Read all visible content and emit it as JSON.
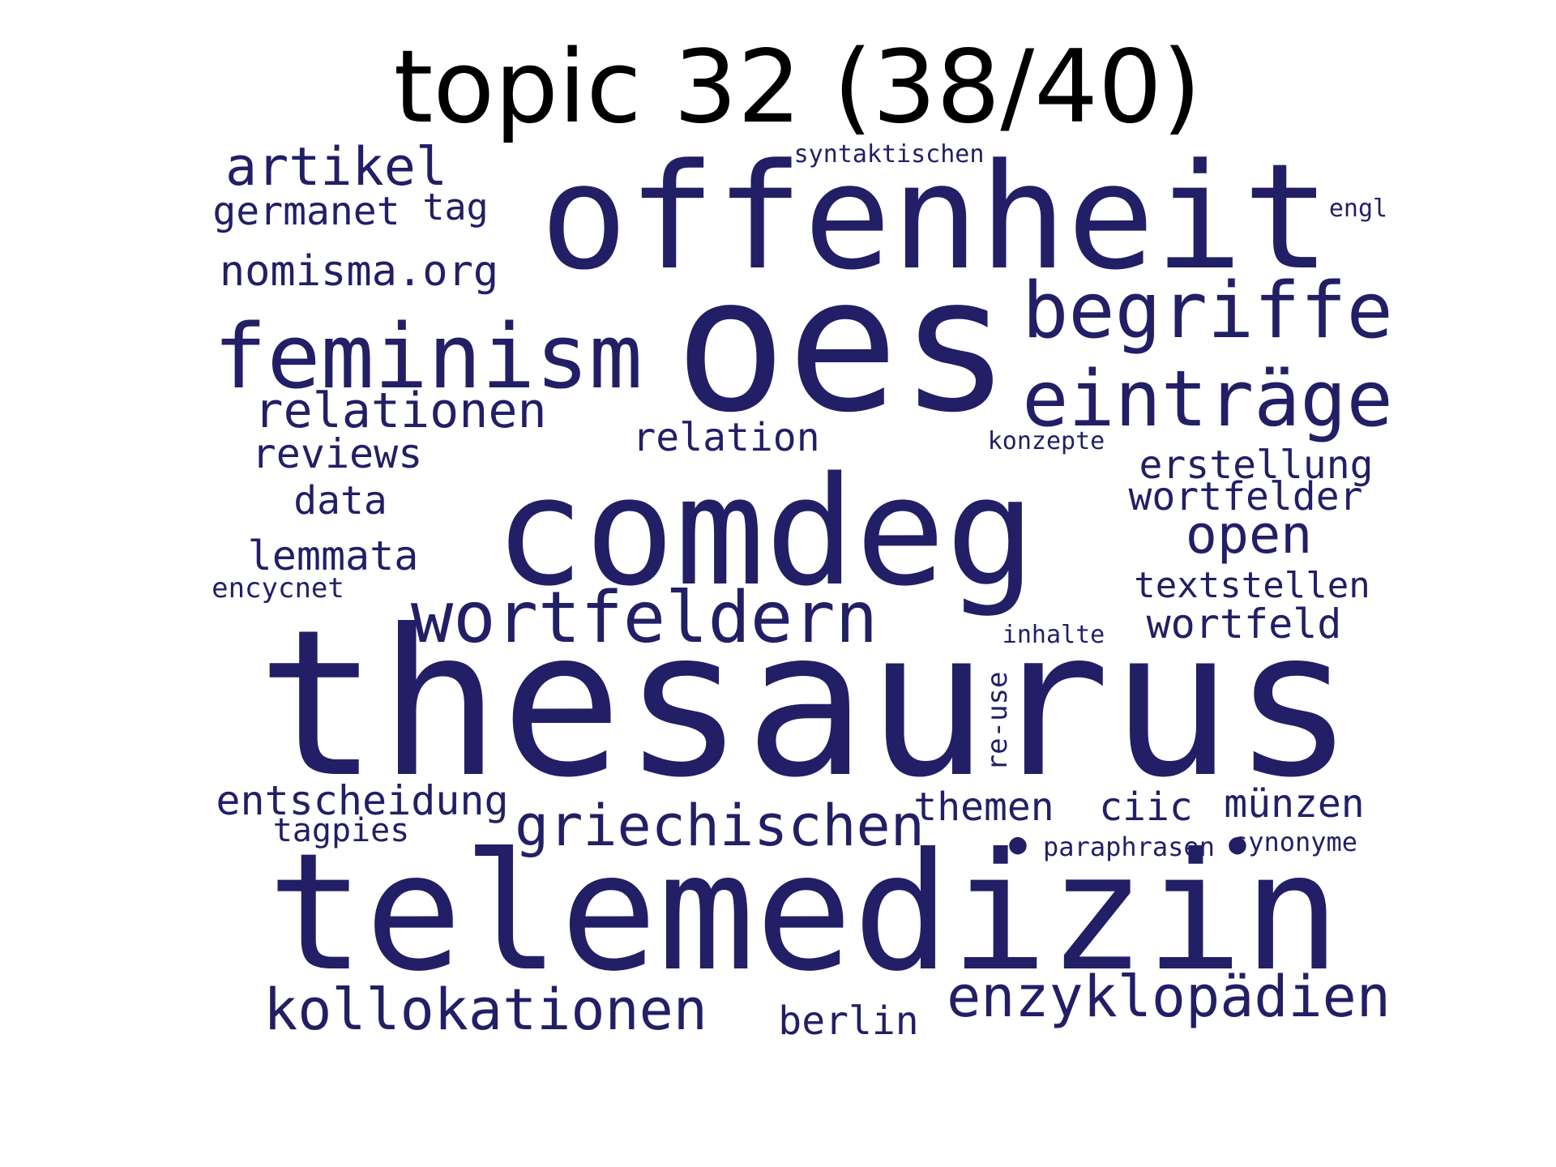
{
  "title": "topic 32 (38/40)",
  "text_color": "#221f66",
  "words": [
    "thesaurus",
    "telemedizin",
    "comdeg",
    "oes",
    "offenheit",
    "feminism",
    "wortfeldern",
    "begriffe",
    "einträge",
    "griechischen",
    "kollokationen",
    "enzyklopädien",
    "artikel",
    "relationen",
    "nomisma.org",
    "germanet",
    "tag",
    "reviews",
    "data",
    "lemmata",
    "encycnet",
    "relation",
    "open",
    "erstellung",
    "wortfelder",
    "textstellen",
    "wortfeld",
    "entscheidung",
    "tagpies",
    "themen",
    "ciic",
    "münzen",
    "berlin",
    "syntaktischen",
    "engl",
    "konzepte",
    "inhalte",
    "re-use",
    "paraphrasen",
    "synonyme",
    "●",
    "●"
  ]
}
